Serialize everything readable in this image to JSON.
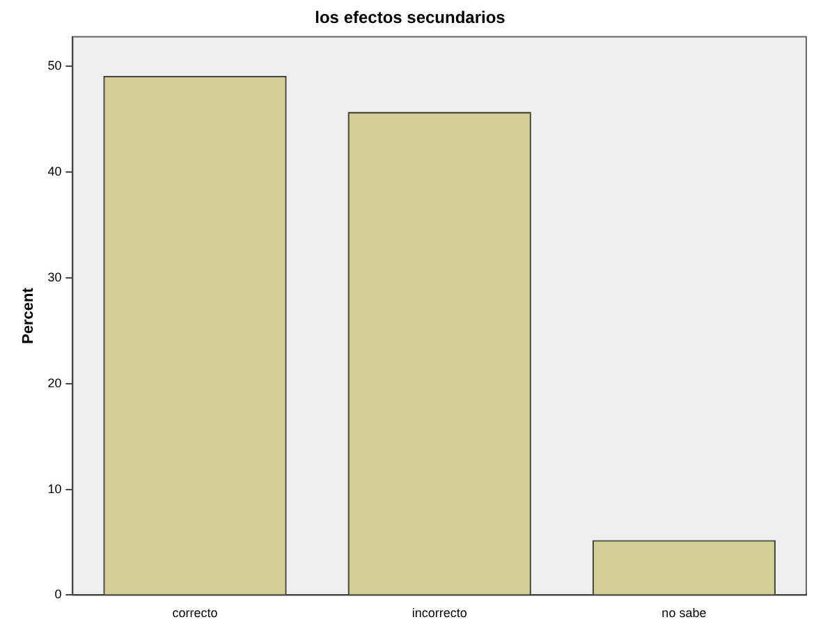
{
  "chart_data": {
    "type": "bar",
    "title": "los efectos secundarios",
    "ylabel": "Percent",
    "categories": [
      "correcto",
      "incorrecto",
      "no sabe"
    ],
    "values": [
      49.1,
      45.7,
      5.2
    ],
    "color": "#d3ce98",
    "ylim": [
      0,
      52.8
    ],
    "yticks": [
      0,
      10,
      20,
      30,
      40,
      50
    ],
    "grid": false,
    "legend": false
  }
}
